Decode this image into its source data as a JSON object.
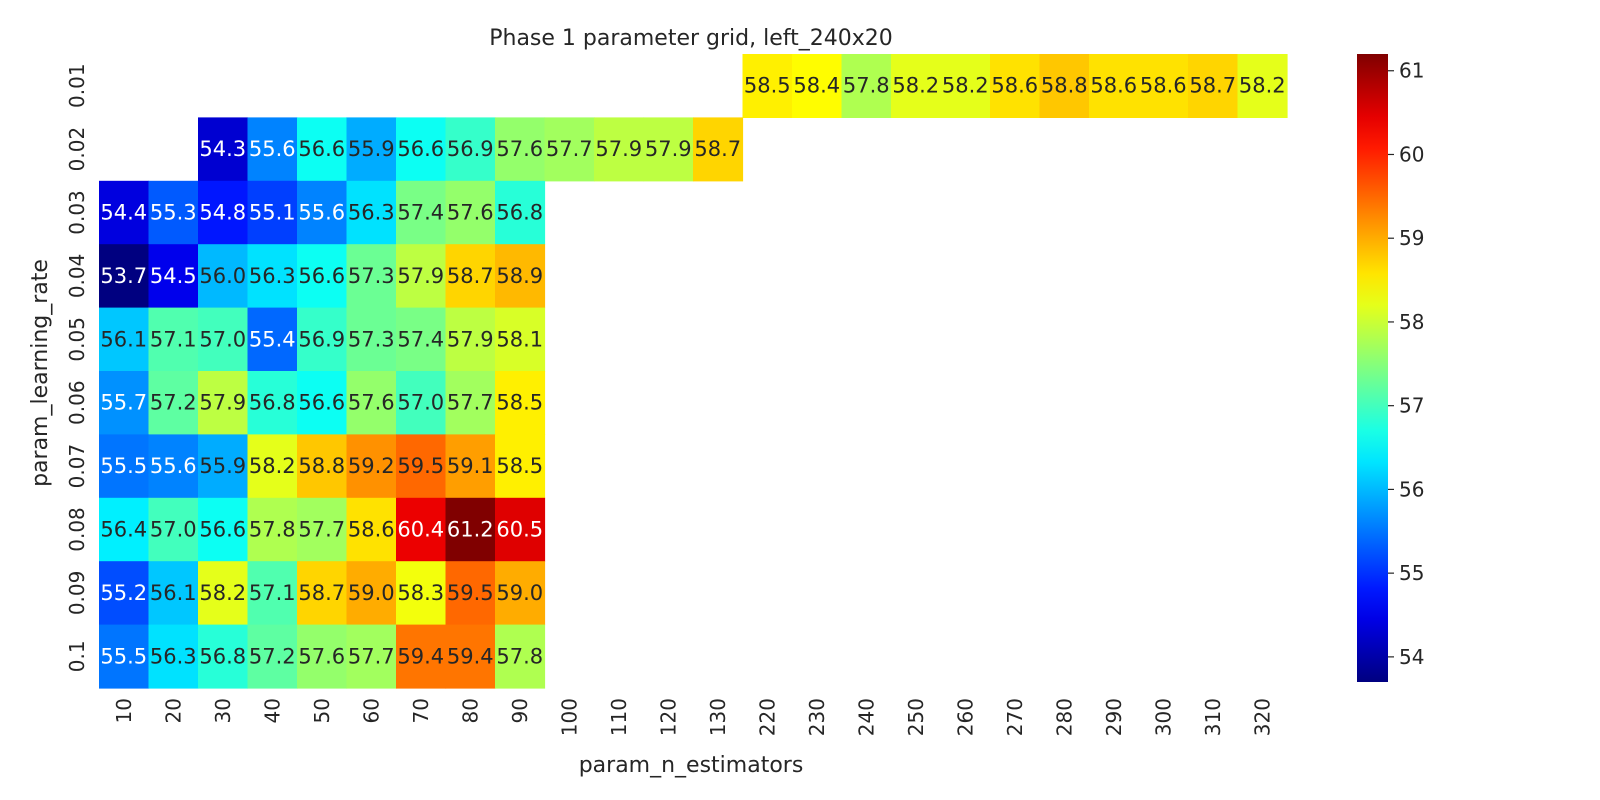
{
  "chart_data": {
    "type": "heatmap",
    "title": "Phase 1 parameter grid, left_240x20",
    "xlabel": "param_n_estimators",
    "ylabel": "param_learning_rate",
    "x_categories": [
      "10",
      "20",
      "30",
      "40",
      "50",
      "60",
      "70",
      "80",
      "90",
      "100",
      "110",
      "120",
      "130",
      "220",
      "230",
      "240",
      "250",
      "260",
      "270",
      "280",
      "290",
      "300",
      "310",
      "320"
    ],
    "y_categories": [
      "0.01",
      "0.02",
      "0.03",
      "0.04",
      "0.05",
      "0.06",
      "0.07",
      "0.08",
      "0.09",
      "0.1"
    ],
    "values": [
      [
        null,
        null,
        null,
        null,
        null,
        null,
        null,
        null,
        null,
        null,
        null,
        null,
        null,
        58.5,
        58.4,
        57.8,
        58.2,
        58.2,
        58.6,
        58.8,
        58.6,
        58.6,
        58.7,
        58.2
      ],
      [
        null,
        null,
        54.3,
        55.6,
        56.6,
        55.9,
        56.6,
        56.9,
        57.6,
        57.7,
        57.9,
        57.9,
        58.7,
        null,
        null,
        null,
        null,
        null,
        null,
        null,
        null,
        null,
        null,
        null
      ],
      [
        54.4,
        55.3,
        54.8,
        55.1,
        55.6,
        56.3,
        57.4,
        57.6,
        56.8,
        null,
        null,
        null,
        null,
        null,
        null,
        null,
        null,
        null,
        null,
        null,
        null,
        null,
        null,
        null
      ],
      [
        53.7,
        54.5,
        56.0,
        56.3,
        56.6,
        57.3,
        57.9,
        58.7,
        58.9,
        null,
        null,
        null,
        null,
        null,
        null,
        null,
        null,
        null,
        null,
        null,
        null,
        null,
        null,
        null
      ],
      [
        56.1,
        57.1,
        57.0,
        55.4,
        56.9,
        57.3,
        57.4,
        57.9,
        58.1,
        null,
        null,
        null,
        null,
        null,
        null,
        null,
        null,
        null,
        null,
        null,
        null,
        null,
        null,
        null
      ],
      [
        55.7,
        57.2,
        57.9,
        56.8,
        56.6,
        57.6,
        57.0,
        57.7,
        58.5,
        null,
        null,
        null,
        null,
        null,
        null,
        null,
        null,
        null,
        null,
        null,
        null,
        null,
        null,
        null
      ],
      [
        55.5,
        55.6,
        55.9,
        58.2,
        58.8,
        59.2,
        59.5,
        59.1,
        58.5,
        null,
        null,
        null,
        null,
        null,
        null,
        null,
        null,
        null,
        null,
        null,
        null,
        null,
        null,
        null
      ],
      [
        56.4,
        57.0,
        56.6,
        57.8,
        57.7,
        58.6,
        60.4,
        61.2,
        60.5,
        null,
        null,
        null,
        null,
        null,
        null,
        null,
        null,
        null,
        null,
        null,
        null,
        null,
        null,
        null
      ],
      [
        55.2,
        56.1,
        58.2,
        57.1,
        58.7,
        59.0,
        58.3,
        59.5,
        59.0,
        null,
        null,
        null,
        null,
        null,
        null,
        null,
        null,
        null,
        null,
        null,
        null,
        null,
        null,
        null
      ],
      [
        55.5,
        56.3,
        56.8,
        57.2,
        57.6,
        57.7,
        59.4,
        59.4,
        57.8,
        null,
        null,
        null,
        null,
        null,
        null,
        null,
        null,
        null,
        null,
        null,
        null,
        null,
        null,
        null
      ]
    ],
    "colormap": "jet",
    "color_range": [
      53.7,
      61.2
    ],
    "colorbar_ticks": [
      54,
      55,
      56,
      57,
      58,
      59,
      60,
      61
    ],
    "annotations": true,
    "grid": false
  }
}
